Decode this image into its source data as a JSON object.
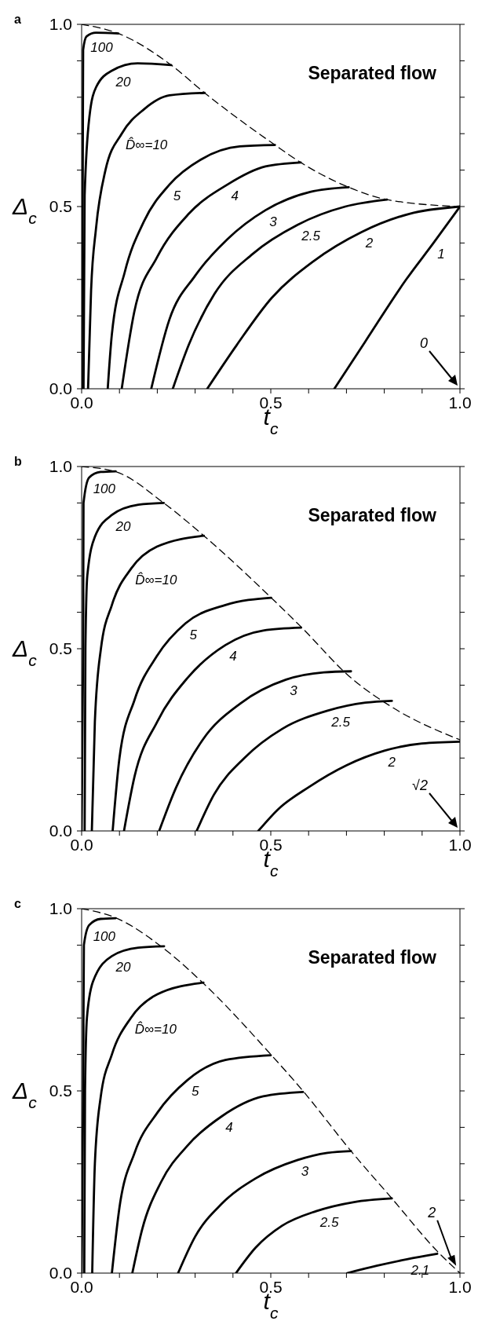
{
  "chart_data": [
    {
      "type": "line",
      "title": "a",
      "xlabel": "t$_{c}$",
      "ylabel": "Δ$_{c}$",
      "marker": "none",
      "xlim": [
        0,
        1
      ],
      "ylim": [
        0,
        1
      ],
      "xticks": [
        {
          "value": 0,
          "label": "0.0"
        },
        {
          "value": 0.1,
          "label": null
        },
        {
          "value": 0.2,
          "label": null
        },
        {
          "value": 0.3,
          "label": null
        },
        {
          "value": 0.4,
          "label": null
        },
        {
          "value": 0.5,
          "label": "0.5"
        },
        {
          "value": 0.6,
          "label": null
        },
        {
          "value": 0.7,
          "label": null
        },
        {
          "value": 0.8,
          "label": null
        },
        {
          "value": 0.9,
          "label": null
        },
        {
          "value": 1,
          "label": "1.0"
        }
      ],
      "yticks": [
        {
          "value": 0,
          "label": "0.0"
        },
        {
          "value": 0.1,
          "label": null
        },
        {
          "value": 0.2,
          "label": null
        },
        {
          "value": 0.3,
          "label": null
        },
        {
          "value": 0.4,
          "label": null
        },
        {
          "value": 0.5,
          "label": "0.5"
        },
        {
          "value": 0.6,
          "label": null
        },
        {
          "value": 0.7,
          "label": null
        },
        {
          "value": 0.8,
          "label": null
        },
        {
          "value": 0.9,
          "label": null
        },
        {
          "value": 1,
          "label": "1.0"
        }
      ],
      "annotations": [
        "Separated flow",
        "0"
      ],
      "series": [
        {
          "name": "100",
          "color": "#000000",
          "x": [
            0,
            0.003,
            0.004,
            0.013,
            0.038,
            0.097
          ],
          "values": [
            0,
            0.6,
            0.93,
            0.967,
            0.977,
            0.975
          ]
        },
        {
          "name": "20",
          "color": "#000000",
          "x": [
            0.005,
            0.008,
            0.021,
            0.038,
            0.08,
            0.148,
            0.237
          ],
          "values": [
            0,
            0.53,
            0.75,
            0.827,
            0.873,
            0.893,
            0.888
          ]
        },
        {
          "name": "D̂∞=10",
          "color": "#000000",
          "x": [
            0.017,
            0.025,
            0.038,
            0.063,
            0.106,
            0.165,
            0.232,
            0.325
          ],
          "values": [
            0,
            0.27,
            0.44,
            0.6,
            0.7,
            0.767,
            0.805,
            0.812
          ]
        },
        {
          "name": "5",
          "color": "#000000",
          "x": [
            0.069,
            0.08,
            0.114,
            0.165,
            0.232,
            0.317,
            0.418,
            0.511
          ],
          "values": [
            0,
            0.15,
            0.32,
            0.46,
            0.56,
            0.63,
            0.665,
            0.669
          ]
        },
        {
          "name": "4",
          "color": "#000000",
          "x": [
            0.106,
            0.139,
            0.199,
            0.283,
            0.385,
            0.486,
            0.579
          ],
          "values": [
            0,
            0.21,
            0.36,
            0.48,
            0.56,
            0.61,
            0.621
          ]
        },
        {
          "name": "3",
          "color": "#000000",
          "x": [
            0.184,
            0.232,
            0.3,
            0.385,
            0.486,
            0.604,
            0.706
          ],
          "values": [
            0,
            0.19,
            0.31,
            0.41,
            0.49,
            0.54,
            0.553
          ]
        },
        {
          "name": "2.5",
          "color": "#000000",
          "x": [
            0.241,
            0.283,
            0.351,
            0.452,
            0.571,
            0.697,
            0.807
          ],
          "values": [
            0,
            0.12,
            0.26,
            0.37,
            0.45,
            0.5,
            0.519
          ]
        },
        {
          "name": "2",
          "color": "#000000",
          "x": [
            0.332,
            0.41,
            0.503,
            0.613,
            0.74,
            0.866,
            1
          ],
          "values": [
            0,
            0.12,
            0.25,
            0.35,
            0.43,
            0.48,
            0.5
          ]
        },
        {
          "name": "1",
          "color": "#000000",
          "x": [
            0.668,
            0.75,
            0.858,
            0.93,
            1
          ],
          "values": [
            0,
            0.13,
            0.3,
            0.4,
            0.5
          ]
        },
        {
          "color": "#000000",
          "line_style": "dashed",
          "x": [
            0,
            0.097,
            0.237,
            0.325,
            0.511,
            0.579,
            0.706,
            0.807,
            1
          ],
          "values": [
            1,
            0.975,
            0.888,
            0.812,
            0.669,
            0.621,
            0.553,
            0.519,
            0.5
          ]
        }
      ]
    },
    {
      "type": "line",
      "title": "b",
      "xlabel": "t$_{c}$",
      "ylabel": "Δ$_{c}$",
      "marker": "none",
      "xlim": [
        0,
        1
      ],
      "ylim": [
        0,
        1
      ],
      "xticks": [
        {
          "value": 0,
          "label": "0.0"
        },
        {
          "value": 0.1,
          "label": null
        },
        {
          "value": 0.2,
          "label": null
        },
        {
          "value": 0.3,
          "label": null
        },
        {
          "value": 0.4,
          "label": null
        },
        {
          "value": 0.5,
          "label": "0.5"
        },
        {
          "value": 0.6,
          "label": null
        },
        {
          "value": 0.7,
          "label": null
        },
        {
          "value": 0.8,
          "label": null
        },
        {
          "value": 0.9,
          "label": null
        },
        {
          "value": 1,
          "label": "1.0"
        }
      ],
      "yticks": [
        {
          "value": 0,
          "label": "0.0"
        },
        {
          "value": 0.1,
          "label": null
        },
        {
          "value": 0.2,
          "label": null
        },
        {
          "value": 0.3,
          "label": null
        },
        {
          "value": 0.4,
          "label": null
        },
        {
          "value": 0.5,
          "label": "0.5"
        },
        {
          "value": 0.6,
          "label": null
        },
        {
          "value": 0.7,
          "label": null
        },
        {
          "value": 0.8,
          "label": null
        },
        {
          "value": 0.9,
          "label": null
        },
        {
          "value": 1,
          "label": "1.0"
        }
      ],
      "annotations": [
        "Separated flow",
        "√2"
      ],
      "series": [
        {
          "name": "100",
          "color": "#000000",
          "x": [
            0,
            0.004,
            0.005,
            0.02,
            0.05,
            0.09
          ],
          "values": [
            0,
            0.5,
            0.9,
            0.97,
            0.985,
            0.987
          ]
        },
        {
          "name": "20",
          "color": "#000000",
          "x": [
            0.008,
            0.01,
            0.015,
            0.035,
            0.08,
            0.15,
            0.217
          ],
          "values": [
            0,
            0.5,
            0.7,
            0.807,
            0.867,
            0.895,
            0.9
          ]
        },
        {
          "name": "D̂∞=10",
          "color": "#000000",
          "x": [
            0.027,
            0.035,
            0.051,
            0.08,
            0.131,
            0.199,
            0.323
          ],
          "values": [
            0,
            0.3,
            0.5,
            0.62,
            0.72,
            0.78,
            0.81
          ]
        },
        {
          "name": "5",
          "color": "#000000",
          "x": [
            0.082,
            0.1,
            0.14,
            0.199,
            0.275,
            0.38,
            0.501
          ],
          "values": [
            0,
            0.2,
            0.36,
            0.48,
            0.57,
            0.62,
            0.64
          ]
        },
        {
          "name": "4",
          "color": "#000000",
          "x": [
            0.112,
            0.14,
            0.2,
            0.28,
            0.38,
            0.48,
            0.58
          ],
          "values": [
            0,
            0.15,
            0.3,
            0.42,
            0.51,
            0.55,
            0.558
          ]
        },
        {
          "name": "3",
          "color": "#000000",
          "x": [
            0.205,
            0.25,
            0.32,
            0.42,
            0.54,
            0.64,
            0.712
          ],
          "values": [
            0,
            0.12,
            0.25,
            0.35,
            0.415,
            0.435,
            0.438
          ]
        },
        {
          "name": "2.5",
          "color": "#000000",
          "x": [
            0.304,
            0.35,
            0.43,
            0.53,
            0.65,
            0.75,
            0.82
          ],
          "values": [
            0,
            0.1,
            0.2,
            0.28,
            0.33,
            0.352,
            0.357
          ]
        },
        {
          "name": "2",
          "color": "#000000",
          "x": [
            0.467,
            0.52,
            0.6,
            0.7,
            0.8,
            0.9,
            1
          ],
          "values": [
            0,
            0.06,
            0.12,
            0.18,
            0.22,
            0.24,
            0.245
          ]
        },
        {
          "color": "#000000",
          "line_style": "dashed",
          "x": [
            0,
            0.092,
            0.217,
            0.323,
            0.501,
            0.58,
            0.712,
            0.82,
            1
          ],
          "values": [
            1,
            0.985,
            0.9,
            0.81,
            0.64,
            0.56,
            0.42,
            0.34,
            0.25
          ]
        }
      ]
    },
    {
      "type": "line",
      "title": "c",
      "xlabel": "t$_{c}$",
      "ylabel": "Δ$_{c}$",
      "marker": "none",
      "xlim": [
        0,
        1
      ],
      "ylim": [
        0,
        1
      ],
      "xticks": [
        {
          "value": 0,
          "label": "0.0"
        },
        {
          "value": 0.1,
          "label": null
        },
        {
          "value": 0.2,
          "label": null
        },
        {
          "value": 0.3,
          "label": null
        },
        {
          "value": 0.4,
          "label": null
        },
        {
          "value": 0.5,
          "label": "0.5"
        },
        {
          "value": 0.6,
          "label": null
        },
        {
          "value": 0.7,
          "label": null
        },
        {
          "value": 0.8,
          "label": null
        },
        {
          "value": 0.9,
          "label": null
        },
        {
          "value": 1,
          "label": "1.0"
        }
      ],
      "yticks": [
        {
          "value": 0,
          "label": "0.0"
        },
        {
          "value": 0.1,
          "label": null
        },
        {
          "value": 0.2,
          "label": null
        },
        {
          "value": 0.3,
          "label": null
        },
        {
          "value": 0.4,
          "label": null
        },
        {
          "value": 0.5,
          "label": "0.5"
        },
        {
          "value": 0.6,
          "label": null
        },
        {
          "value": 0.7,
          "label": null
        },
        {
          "value": 0.8,
          "label": null
        },
        {
          "value": 0.9,
          "label": null
        },
        {
          "value": 1,
          "label": "1.0"
        }
      ],
      "annotations": [
        "Separated flow",
        {
          "text": "2",
          "x": 0.99,
          "y": 0.02
        }
      ],
      "series": [
        {
          "name": "100",
          "color": "#000000",
          "x": [
            0,
            0.004,
            0.006,
            0.02,
            0.05,
            0.09
          ],
          "values": [
            0,
            0.5,
            0.9,
            0.955,
            0.972,
            0.974
          ]
        },
        {
          "name": "20",
          "color": "#000000",
          "x": [
            0.007,
            0.009,
            0.014,
            0.03,
            0.08,
            0.15,
            0.218
          ],
          "values": [
            0,
            0.5,
            0.7,
            0.8,
            0.87,
            0.893,
            0.897
          ]
        },
        {
          "name": "D̂∞=10",
          "color": "#000000",
          "x": [
            0.028,
            0.035,
            0.05,
            0.08,
            0.13,
            0.2,
            0.322
          ],
          "values": [
            0,
            0.3,
            0.48,
            0.6,
            0.7,
            0.765,
            0.797
          ]
        },
        {
          "name": "5",
          "color": "#000000",
          "x": [
            0.08,
            0.1,
            0.14,
            0.2,
            0.28,
            0.38,
            0.5
          ],
          "values": [
            0,
            0.18,
            0.33,
            0.44,
            0.53,
            0.585,
            0.598
          ]
        },
        {
          "name": "4",
          "color": "#000000",
          "x": [
            0.134,
            0.16,
            0.21,
            0.28,
            0.37,
            0.48,
            0.585
          ],
          "values": [
            0,
            0.12,
            0.25,
            0.35,
            0.43,
            0.485,
            0.497
          ]
        },
        {
          "name": "3",
          "color": "#000000",
          "x": [
            0.255,
            0.3,
            0.37,
            0.46,
            0.57,
            0.65,
            0.712
          ],
          "values": [
            0,
            0.1,
            0.19,
            0.26,
            0.31,
            0.33,
            0.335
          ]
        },
        {
          "name": "2.5",
          "color": "#000000",
          "x": [
            0.408,
            0.46,
            0.53,
            0.62,
            0.72,
            0.82
          ],
          "values": [
            0,
            0.07,
            0.13,
            0.17,
            0.195,
            0.205
          ]
        },
        {
          "name": "2.1",
          "color": "#000000",
          "x": [
            0.702,
            0.78,
            0.86,
            0.94
          ],
          "values": [
            0,
            0.02,
            0.038,
            0.053
          ]
        },
        {
          "color": "#000000",
          "line_style": "dashed",
          "x": [
            0,
            0.09,
            0.218,
            0.322,
            0.5,
            0.585,
            0.712,
            0.82,
            0.94,
            1
          ],
          "values": [
            1,
            0.975,
            0.89,
            0.795,
            0.6,
            0.5,
            0.335,
            0.205,
            0.06,
            0
          ]
        }
      ]
    }
  ]
}
